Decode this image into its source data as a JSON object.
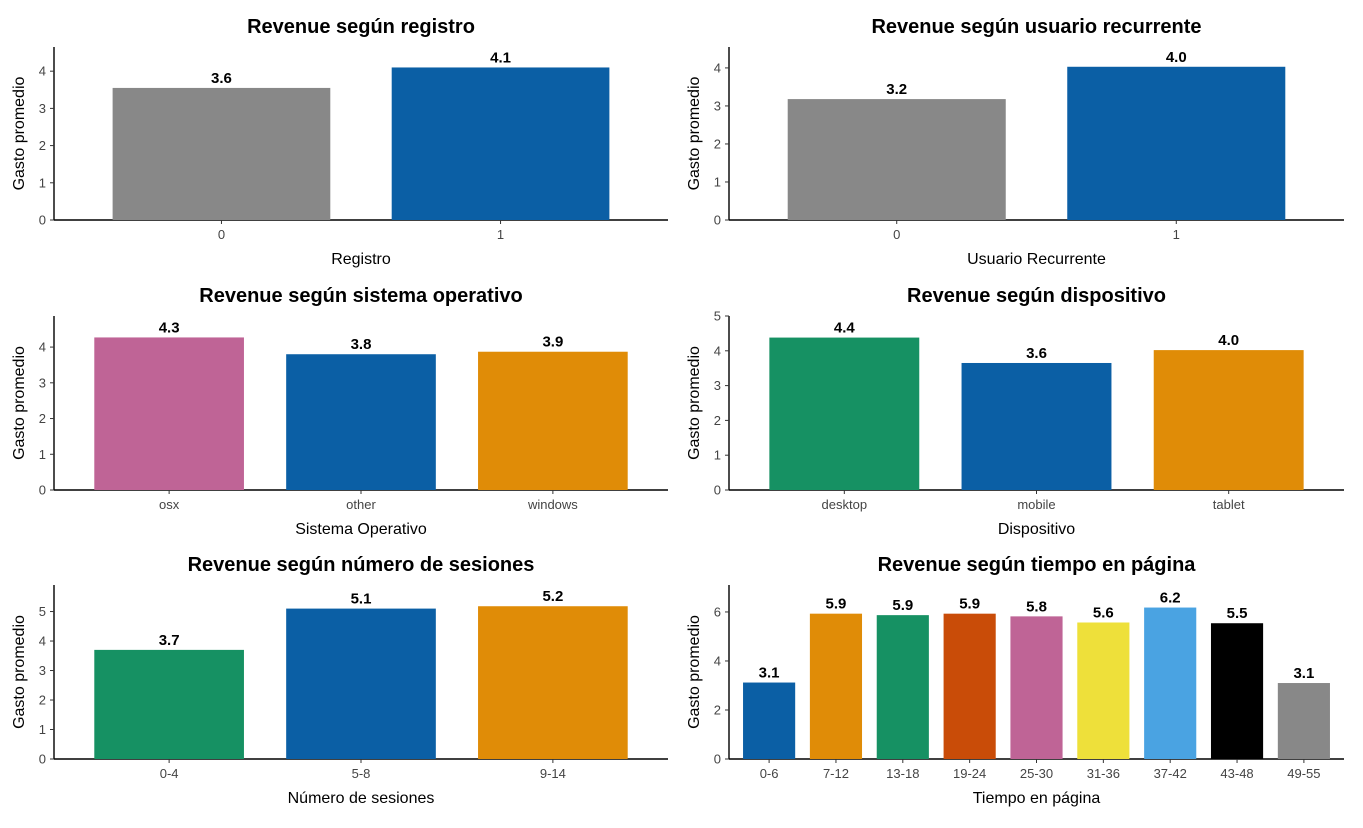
{
  "chart_data": [
    {
      "type": "bar",
      "title": "Revenue según registro",
      "xlabel": "Registro",
      "ylabel": "Gasto promedio",
      "categories": [
        "0",
        "1"
      ],
      "values": [
        3.55,
        4.1
      ],
      "data_labels": [
        "3.6",
        "4.1"
      ],
      "colors": [
        "#888888",
        "#0b5fa5"
      ],
      "ylim": [
        0,
        4.65
      ],
      "yticks": [
        "0",
        "1",
        "2",
        "3",
        "4"
      ],
      "grid": false
    },
    {
      "type": "bar",
      "title": "Revenue según usuario recurrente",
      "xlabel": "Usuario Recurrente",
      "ylabel": "Gasto promedio",
      "categories": [
        "0",
        "1"
      ],
      "values": [
        3.18,
        4.03
      ],
      "data_labels": [
        "3.2",
        "4.0"
      ],
      "colors": [
        "#888888",
        "#0b5fa5"
      ],
      "ylim": [
        0,
        4.55
      ],
      "yticks": [
        "0",
        "1",
        "2",
        "3",
        "4"
      ],
      "grid": false
    },
    {
      "type": "bar",
      "title": "Revenue según sistema operativo",
      "xlabel": "Sistema Operativo",
      "ylabel": "Gasto promedio",
      "categories": [
        "osx",
        "other",
        "windows"
      ],
      "values": [
        4.27,
        3.8,
        3.87
      ],
      "data_labels": [
        "4.3",
        "3.8",
        "3.9"
      ],
      "colors": [
        "#bf6496",
        "#0b5fa5",
        "#e08c07"
      ],
      "ylim": [
        0,
        4.87
      ],
      "yticks": [
        "0",
        "1",
        "2",
        "3",
        "4"
      ],
      "grid": false
    },
    {
      "type": "bar",
      "title": "Revenue según dispositivo",
      "xlabel": "Dispositivo",
      "ylabel": "Gasto promedio",
      "categories": [
        "desktop",
        "mobile",
        "tablet"
      ],
      "values": [
        4.38,
        3.65,
        4.02
      ],
      "data_labels": [
        "4.4",
        "3.6",
        "4.0"
      ],
      "colors": [
        "#169163",
        "#0b5fa5",
        "#e08c07"
      ],
      "ylim": [
        0,
        5.0
      ],
      "yticks": [
        "0",
        "1",
        "2",
        "3",
        "4",
        "5"
      ],
      "grid": false
    },
    {
      "type": "bar",
      "title": "Revenue según número de sesiones",
      "xlabel": "Número de sesiones",
      "ylabel": "Gasto promedio",
      "categories": [
        "0-4",
        "5-8",
        "9-14"
      ],
      "values": [
        3.7,
        5.1,
        5.18
      ],
      "data_labels": [
        "3.7",
        "5.1",
        "5.2"
      ],
      "colors": [
        "#169163",
        "#0b5fa5",
        "#e08c07"
      ],
      "ylim": [
        0,
        5.9
      ],
      "yticks": [
        "0",
        "1",
        "2",
        "3",
        "4",
        "5"
      ],
      "grid": false
    },
    {
      "type": "bar",
      "title": "Revenue según tiempo en página",
      "xlabel": "Tiempo en página",
      "ylabel": "Gasto promedio",
      "categories": [
        "0-6",
        "7-12",
        "13-18",
        "19-24",
        "25-30",
        "31-36",
        "37-42",
        "43-48",
        "49-55"
      ],
      "values": [
        3.12,
        5.93,
        5.87,
        5.93,
        5.82,
        5.57,
        6.18,
        5.54,
        3.1
      ],
      "data_labels": [
        "3.1",
        "5.9",
        "5.9",
        "5.9",
        "5.8",
        "5.6",
        "6.2",
        "5.5",
        "3.1"
      ],
      "colors": [
        "#0b5fa5",
        "#e08c07",
        "#169163",
        "#c94c08",
        "#bf6496",
        "#eee03a",
        "#4aa3e2",
        "#000000",
        "#888888"
      ],
      "ylim": [
        0,
        7.1
      ],
      "yticks": [
        "0",
        "2",
        "4",
        "6"
      ],
      "grid": false
    }
  ]
}
